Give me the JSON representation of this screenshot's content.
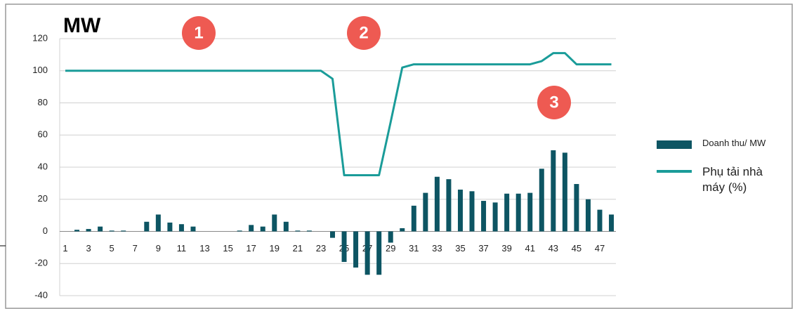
{
  "chart_data": {
    "type": "bar",
    "ylabel": "MW",
    "categories": [
      "1",
      null,
      "3",
      null,
      "5",
      null,
      "7",
      null,
      "9",
      null,
      "11",
      null,
      "13",
      null,
      "15",
      null,
      "17",
      null,
      "19",
      null,
      "21",
      null,
      "23",
      null,
      "25",
      null,
      "27",
      null,
      "29",
      null,
      "31",
      null,
      "33",
      null,
      "35",
      null,
      "37",
      null,
      "39",
      null,
      "41",
      null,
      "43",
      null,
      "45",
      null,
      "47",
      null
    ],
    "series": [
      {
        "name": "Doanh thu/ MW",
        "type": "bar",
        "color": "#0d5563",
        "values": [
          0,
          1,
          1.5,
          3,
          0.5,
          0.5,
          0,
          6,
          10.5,
          5.5,
          4.5,
          3,
          0,
          0,
          0,
          0.5,
          4,
          3,
          10.5,
          6,
          0.5,
          0.5,
          0,
          -4,
          -19,
          -22.5,
          -27,
          -27,
          -7,
          2,
          16,
          24,
          34,
          32.5,
          26,
          25,
          19,
          18,
          23.5,
          23.5,
          24,
          39,
          50.5,
          49,
          29.5,
          20,
          13.5,
          10.5
        ]
      },
      {
        "name": "Phụ tải nhà máy (%)",
        "type": "line",
        "color": "#1a9c99",
        "values": [
          100,
          100,
          100,
          100,
          100,
          100,
          100,
          100,
          100,
          100,
          100,
          100,
          100,
          100,
          100,
          100,
          100,
          100,
          100,
          100,
          100,
          100,
          100,
          95,
          35,
          35,
          35,
          35,
          68,
          102,
          104,
          104,
          104,
          104,
          104,
          104,
          104,
          104,
          104,
          104,
          104,
          106,
          111,
          111,
          104,
          104,
          104,
          104
        ]
      }
    ],
    "ylim": [
      -40,
      120
    ],
    "yticks": [
      -40,
      -20,
      0,
      20,
      40,
      60,
      80,
      100,
      120
    ],
    "grid": true,
    "annotations": [
      "1",
      "2",
      "3"
    ]
  }
}
